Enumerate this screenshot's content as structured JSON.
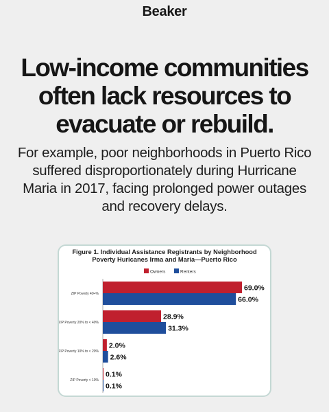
{
  "brand": {
    "name": "Beaker"
  },
  "headline": {
    "lines": [
      "Low-income communities",
      "often lack resources to",
      "evacuate or rebuild."
    ]
  },
  "body": {
    "text": "For example, poor neighborhoods in Puerto Rico suffered disproportionately during Hurricane Maria in 2017, facing prolonged power outages and recovery delays."
  },
  "colors": {
    "owners": "#c0202e",
    "renters": "#1f4e9c",
    "card_border": "#c4d8d4"
  },
  "chart_data": {
    "type": "bar",
    "orientation": "horizontal",
    "title": "Figure 1. Individual Assistance Registrants by Neighborhood Poverty Huricanes Irma and Maria—Puerto Rico",
    "title_lines": [
      "Figure 1. Individual Assistance Registrants by Neighborhood",
      "Poverty Huricanes Irma and Maria—Puerto Rico"
    ],
    "categories": [
      "ZIP Poverty 40+%",
      "ZIP Poverty 20% to < 40%",
      "ZIP Poverty 10% to < 20%",
      "ZIP Poverty < 10%"
    ],
    "series": [
      {
        "name": "Owners",
        "values": [
          69.0,
          28.9,
          2.0,
          0.1
        ],
        "labels": [
          "69.0%",
          "28.9%",
          "2.0%",
          "0.1%"
        ]
      },
      {
        "name": "Renters",
        "values": [
          66.0,
          31.3,
          2.6,
          0.1
        ],
        "labels": [
          "66.0%",
          "31.3%",
          "2.6%",
          "0.1%"
        ]
      }
    ],
    "xlim": [
      0,
      69.0
    ],
    "legend": "top-center",
    "grid": false
  }
}
